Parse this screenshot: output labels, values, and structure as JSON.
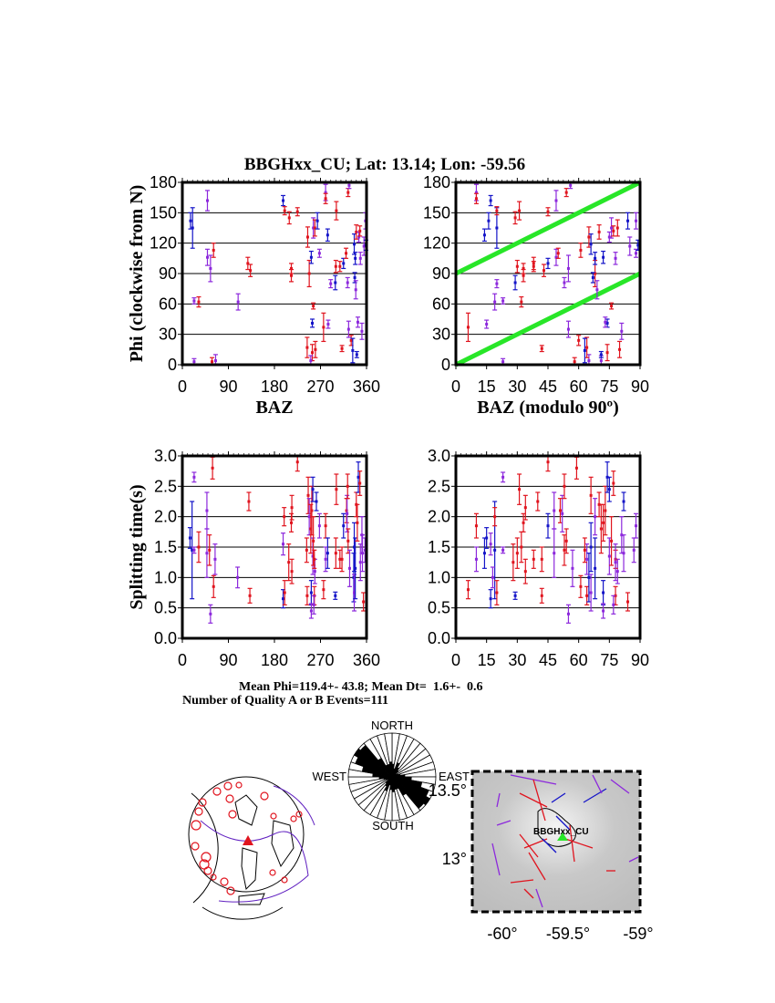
{
  "title": "BBGHxx_CU; Lat:  13.14;  Lon:  -59.56",
  "colors": {
    "red": "#e0141e",
    "blue": "#1414c8",
    "purple": "#8c28dc",
    "green": "#28e628",
    "grid": "#000000"
  },
  "summary": {
    "mean_line": "Mean Phi=119.4+- 43.8; Mean Dt=  1.6+-  0.6",
    "count_line": "Number of Quality A or B Events=111"
  },
  "chart_data": [
    {
      "id": "phi_baz",
      "type": "scatter",
      "xlabel": "BAZ",
      "ylabel": "Phi (clockwise from N)",
      "xlim": [
        0,
        360
      ],
      "ylim": [
        0,
        180
      ],
      "xticks": [
        "0",
        "90",
        "180",
        "270",
        "360"
      ],
      "yticks": [
        "0",
        "30",
        "60",
        "90",
        "120",
        "150",
        "180"
      ],
      "grid": true,
      "points_note": "[baz, phi, err, color]",
      "points": [
        [
          16,
          142,
          8,
          "blue"
        ],
        [
          20,
          135,
          20,
          "blue"
        ],
        [
          49,
          162,
          10,
          "purple"
        ],
        [
          23,
          63,
          3,
          "purple"
        ],
        [
          32,
          62,
          5,
          "red"
        ],
        [
          23,
          3,
          3,
          "purple"
        ],
        [
          49,
          106,
          8,
          "purple"
        ],
        [
          55,
          95,
          13,
          "purple"
        ],
        [
          61,
          113,
          7,
          "red"
        ],
        [
          58,
          3,
          4,
          "red"
        ],
        [
          65,
          4,
          6,
          "purple"
        ],
        [
          109,
          62,
          8,
          "purple"
        ],
        [
          128,
          100,
          6,
          "red"
        ],
        [
          133,
          93,
          6,
          "red"
        ],
        [
          197,
          162,
          5,
          "blue"
        ],
        [
          200,
          152,
          4,
          "red"
        ],
        [
          209,
          145,
          6,
          "red"
        ],
        [
          213,
          88,
          6,
          "red"
        ],
        [
          213,
          95,
          5,
          "red"
        ],
        [
          225,
          151,
          4,
          "red"
        ],
        [
          245,
          126,
          10,
          "red"
        ],
        [
          248,
          90,
          13,
          "red"
        ],
        [
          244,
          17,
          10,
          "red"
        ],
        [
          254,
          41,
          4,
          "blue"
        ],
        [
          252,
          106,
          6,
          "blue"
        ],
        [
          256,
          135,
          10,
          "purple"
        ],
        [
          259,
          135,
          8,
          "red"
        ],
        [
          256,
          58,
          3,
          "red"
        ],
        [
          254,
          12,
          8,
          "red"
        ],
        [
          251,
          4,
          5,
          "purple"
        ],
        [
          260,
          15,
          8,
          "red"
        ],
        [
          264,
          142,
          8,
          "blue"
        ],
        [
          268,
          110,
          4,
          "purple"
        ],
        [
          276,
          37,
          14,
          "red"
        ],
        [
          280,
          170,
          8,
          "purple"
        ],
        [
          280,
          164,
          5,
          "red"
        ],
        [
          284,
          128,
          6,
          "blue"
        ],
        [
          285,
          40,
          4,
          "purple"
        ],
        [
          290,
          80,
          4,
          "purple"
        ],
        [
          299,
          81,
          7,
          "blue"
        ],
        [
          300,
          97,
          6,
          "red"
        ],
        [
          301,
          152,
          9,
          "red"
        ],
        [
          312,
          16,
          3,
          "red"
        ],
        [
          308,
          97,
          5,
          "red"
        ],
        [
          315,
          100,
          5,
          "blue"
        ],
        [
          320,
          110,
          5,
          "red"
        ],
        [
          323,
          81,
          5,
          "purple"
        ],
        [
          324,
          170,
          4,
          "red"
        ],
        [
          326,
          177,
          3,
          "purple"
        ],
        [
          325,
          35,
          8,
          "purple"
        ],
        [
          330,
          24,
          5,
          "red"
        ],
        [
          333,
          14,
          12,
          "blue"
        ],
        [
          336,
          119,
          10,
          "blue"
        ],
        [
          337,
          86,
          5,
          "blue"
        ],
        [
          339,
          74,
          9,
          "purple"
        ],
        [
          338,
          105,
          6,
          "blue"
        ],
        [
          340,
          131,
          7,
          "red"
        ],
        [
          341,
          10,
          3,
          "blue"
        ],
        [
          343,
          42,
          5,
          "purple"
        ],
        [
          345,
          126,
          5,
          "purple"
        ],
        [
          348,
          105,
          6,
          "purple"
        ],
        [
          347,
          132,
          5,
          "red"
        ],
        [
          351,
          33,
          8,
          "purple"
        ],
        [
          355,
          117,
          9,
          "purple"
        ],
        [
          358,
          142,
          8,
          "purple"
        ],
        [
          359,
          118,
          5,
          "blue"
        ]
      ]
    },
    {
      "id": "phi_baz_mod90",
      "type": "scatter",
      "xlabel": "BAZ (modulo 90º)",
      "ylabel": "",
      "xlim": [
        0,
        90
      ],
      "ylim": [
        0,
        180
      ],
      "xticks": [
        "0",
        "15",
        "30",
        "45",
        "60",
        "75",
        "90"
      ],
      "yticks": [
        "0",
        "30",
        "60",
        "90",
        "120",
        "150",
        "180"
      ],
      "grid": true,
      "source": "phi_baz",
      "modulo": 90,
      "reference_lines": [
        [
          [
            0,
            90
          ],
          [
            90,
            180
          ]
        ],
        [
          [
            0,
            0
          ],
          [
            90,
            90
          ]
        ]
      ]
    },
    {
      "id": "dt_baz",
      "type": "scatter",
      "xlabel": "",
      "ylabel": "Splitting time(s)",
      "xlim": [
        0,
        360
      ],
      "ylim": [
        0,
        3
      ],
      "xticks": [
        "0",
        "90",
        "180",
        "270",
        "360"
      ],
      "yticks": [
        "0.0",
        "0.5",
        "1.0",
        "1.5",
        "2.0",
        "2.5",
        "3.0"
      ],
      "grid": true,
      "points_note": "[baz, dt, err, color]",
      "points": [
        [
          15,
          1.65,
          0.17,
          "blue"
        ],
        [
          19,
          1.45,
          0.8,
          "blue"
        ],
        [
          23,
          2.65,
          0.08,
          "purple"
        ],
        [
          23,
          1.45,
          0.05,
          "purple"
        ],
        [
          32,
          1.5,
          0.25,
          "red"
        ],
        [
          48,
          1.4,
          0.4,
          "purple"
        ],
        [
          48,
          2.1,
          0.3,
          "purple"
        ],
        [
          53,
          1.45,
          0.25,
          "red"
        ],
        [
          55,
          0.4,
          0.15,
          "purple"
        ],
        [
          59,
          2.8,
          0.18,
          "red"
        ],
        [
          61,
          0.85,
          0.18,
          "red"
        ],
        [
          64,
          1.3,
          0.25,
          "purple"
        ],
        [
          108,
          1.0,
          0.17,
          "purple"
        ],
        [
          132,
          0.7,
          0.12,
          "red"
        ],
        [
          130,
          2.25,
          0.15,
          "red"
        ],
        [
          197,
          1.55,
          0.18,
          "purple"
        ],
        [
          197,
          0.65,
          0.15,
          "blue"
        ],
        [
          199,
          2.0,
          0.15,
          "red"
        ],
        [
          200,
          0.75,
          0.2,
          "red"
        ],
        [
          208,
          1.25,
          0.3,
          "red"
        ],
        [
          213,
          1.9,
          0.15,
          "red"
        ],
        [
          214,
          2.15,
          0.2,
          "red"
        ],
        [
          214,
          1.1,
          0.2,
          "red"
        ],
        [
          225,
          2.9,
          0.15,
          "red"
        ],
        [
          243,
          1.45,
          0.2,
          "red"
        ],
        [
          244,
          0.7,
          0.15,
          "red"
        ],
        [
          246,
          2.35,
          0.3,
          "red"
        ],
        [
          248,
          2.0,
          0.3,
          "purple"
        ],
        [
          251,
          1.8,
          0.4,
          "red"
        ],
        [
          252,
          0.75,
          0.2,
          "blue"
        ],
        [
          252,
          0.45,
          0.12,
          "purple"
        ],
        [
          253,
          2.1,
          0.4,
          "red"
        ],
        [
          255,
          2.45,
          0.2,
          "blue"
        ],
        [
          255,
          1.35,
          0.3,
          "purple"
        ],
        [
          256,
          1.6,
          0.4,
          "red"
        ],
        [
          258,
          0.7,
          0.15,
          "red"
        ],
        [
          257,
          0.55,
          0.15,
          "purple"
        ],
        [
          259,
          1.1,
          0.2,
          "purple"
        ],
        [
          258,
          1.3,
          0.15,
          "red"
        ],
        [
          262,
          2.25,
          0.15,
          "blue"
        ],
        [
          268,
          1.85,
          0.2,
          "purple"
        ],
        [
          276,
          0.8,
          0.15,
          "red"
        ],
        [
          280,
          1.85,
          0.2,
          "red"
        ],
        [
          280,
          1.3,
          0.2,
          "purple"
        ],
        [
          284,
          1.4,
          0.25,
          "blue"
        ],
        [
          299,
          0.7,
          0.06,
          "blue"
        ],
        [
          300,
          1.4,
          0.25,
          "red"
        ],
        [
          301,
          2.45,
          0.25,
          "red"
        ],
        [
          308,
          1.3,
          0.15,
          "red"
        ],
        [
          312,
          1.3,
          0.2,
          "red"
        ],
        [
          315,
          1.85,
          0.2,
          "blue"
        ],
        [
          321,
          2.1,
          0.2,
          "red"
        ],
        [
          322,
          2.05,
          0.3,
          "purple"
        ],
        [
          323,
          2.5,
          0.2,
          "red"
        ],
        [
          324,
          1.6,
          0.2,
          "red"
        ],
        [
          327,
          1.15,
          0.3,
          "purple"
        ],
        [
          336,
          1.5,
          0.4,
          "blue"
        ],
        [
          335,
          1.0,
          0.4,
          "blue"
        ],
        [
          336,
          0.75,
          0.3,
          "purple"
        ],
        [
          338,
          1.15,
          0.5,
          "blue"
        ],
        [
          340,
          2.2,
          0.2,
          "red"
        ],
        [
          342,
          1.9,
          0.3,
          "red"
        ],
        [
          344,
          2.65,
          0.25,
          "blue"
        ],
        [
          347,
          2.55,
          0.2,
          "red"
        ],
        [
          348,
          1.25,
          0.3,
          "purple"
        ],
        [
          351,
          1.7,
          0.3,
          "purple"
        ],
        [
          352,
          1.4,
          0.3,
          "purple"
        ],
        [
          354,
          0.6,
          0.15,
          "red"
        ],
        [
          357,
          1.45,
          0.2,
          "purple"
        ]
      ]
    },
    {
      "id": "dt_baz_mod90",
      "type": "scatter",
      "xlabel": "",
      "ylabel": "",
      "xlim": [
        0,
        90
      ],
      "ylim": [
        0,
        3
      ],
      "xticks": [
        "0",
        "15",
        "30",
        "45",
        "60",
        "75",
        "90"
      ],
      "yticks": [
        "0.0",
        "0.5",
        "1.0",
        "1.5",
        "2.0",
        "2.5",
        "3.0"
      ],
      "grid": true,
      "source": "dt_baz",
      "modulo": 90
    },
    {
      "id": "rose",
      "type": "rose",
      "labels": {
        "north": "NORTH",
        "south": "SOUTH",
        "east": "EAST",
        "west": "WEST"
      },
      "bin_deg": 10,
      "relative_counts": [
        0.3,
        0.2,
        0.35,
        0.25,
        0.2,
        0.1,
        0.15,
        0.2,
        0.3,
        0.45,
        0.7,
        0.9,
        1.0,
        0.95,
        0.5,
        0.3,
        0.3,
        0.35
      ]
    }
  ],
  "map": {
    "station_label": "BBGHxx_CU",
    "lat_labels": [
      "13.5°",
      "13°"
    ],
    "lon_labels": [
      "-60°",
      "-59.5°",
      "-59°"
    ]
  }
}
